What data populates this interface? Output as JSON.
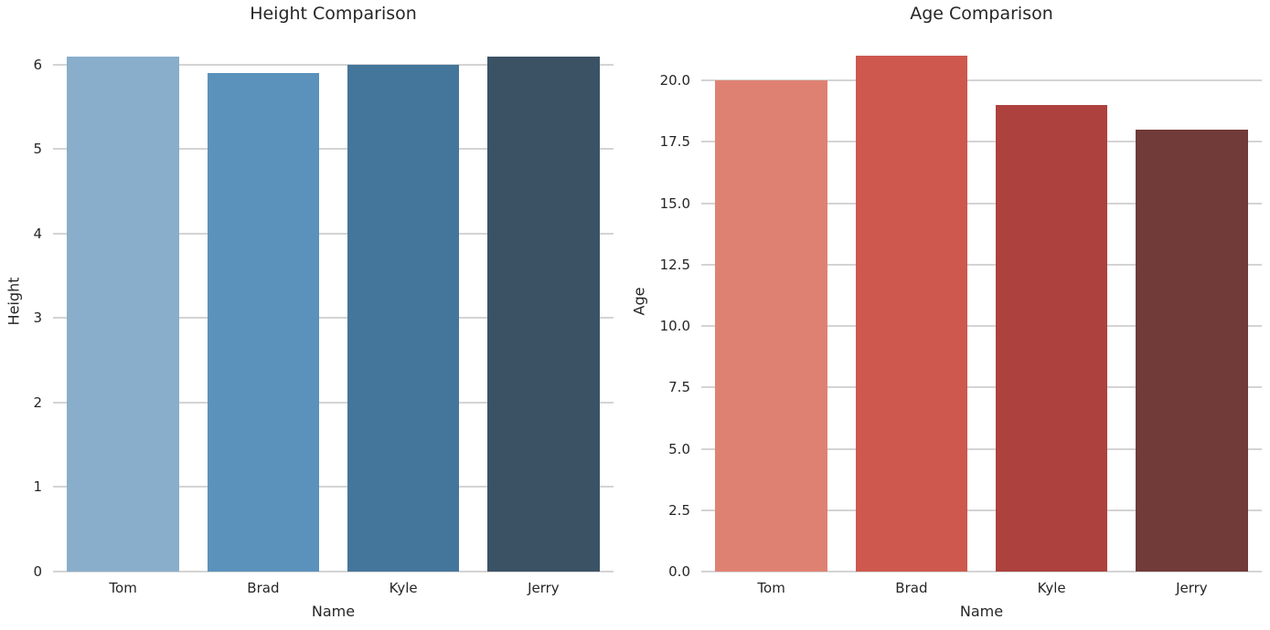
{
  "figure": {
    "background": "#ffffff",
    "grid_color": "#d4d4d4",
    "text_color": "#262626"
  },
  "chart_data": [
    {
      "type": "bar",
      "title": "Height Comparison",
      "xlabel": "Name",
      "ylabel": "Height",
      "categories": [
        "Tom",
        "Brad",
        "Kyle",
        "Jerry"
      ],
      "values": [
        6.1,
        5.9,
        6.0,
        6.1
      ],
      "colors": [
        "#89AECB",
        "#5A92BB",
        "#44769B",
        "#3B5265"
      ],
      "yticks": [
        "0",
        "1",
        "2",
        "3",
        "4",
        "5",
        "6"
      ],
      "ylim": [
        0,
        6.41
      ],
      "bar_rel_width": 0.8,
      "grid": "horizontal",
      "legend_position": "none"
    },
    {
      "type": "bar",
      "title": "Age Comparison",
      "xlabel": "Name",
      "ylabel": "Age",
      "categories": [
        "Tom",
        "Brad",
        "Kyle",
        "Jerry"
      ],
      "values": [
        20,
        21,
        19,
        18
      ],
      "colors": [
        "#DF8172",
        "#CE584E",
        "#AD413D",
        "#703B38"
      ],
      "yticks": [
        "0.0",
        "2.5",
        "5.0",
        "7.5",
        "10.0",
        "12.5",
        "15.0",
        "17.5",
        "20.0"
      ],
      "ylim": [
        0,
        22.05
      ],
      "bar_rel_width": 0.8,
      "grid": "horizontal",
      "legend_position": "none"
    }
  ]
}
